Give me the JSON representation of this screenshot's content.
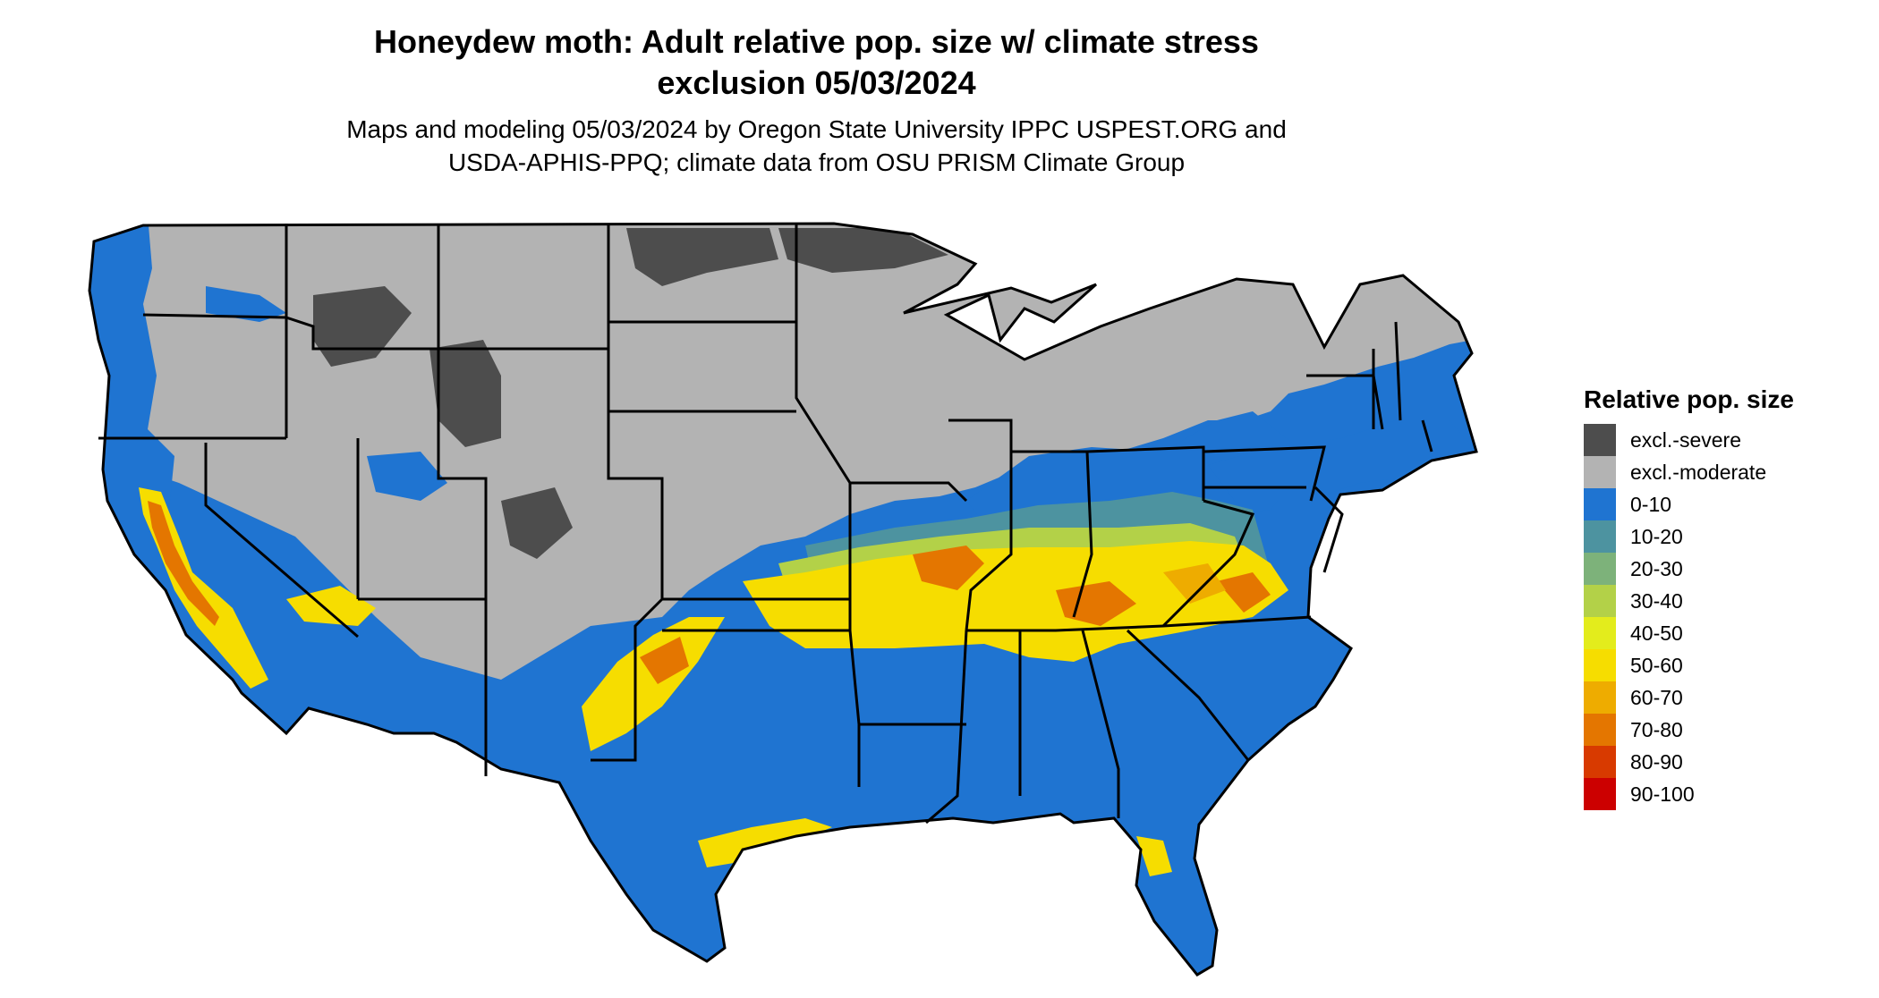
{
  "title": {
    "line1": "Honeydew moth: Adult relative pop. size w/ climate stress",
    "line2": "exclusion 05/03/2024"
  },
  "subtitle": {
    "line1": "Maps and modeling 05/03/2024 by Oregon State University IPPC USPEST.ORG and",
    "line2": "USDA-APHIS-PPQ; climate data from OSU PRISM Climate Group"
  },
  "legend": {
    "title": "Relative pop. size",
    "items": [
      {
        "label": "excl.-severe",
        "color": "#4d4d4d"
      },
      {
        "label": "excl.-moderate",
        "color": "#b3b3b3"
      },
      {
        "label": "0-10",
        "color": "#1f74d1"
      },
      {
        "label": "10-20",
        "color": "#4d93a0"
      },
      {
        "label": "20-30",
        "color": "#7db27a"
      },
      {
        "label": "30-40",
        "color": "#b3d148"
      },
      {
        "label": "40-50",
        "color": "#e3ec1c"
      },
      {
        "label": "50-60",
        "color": "#f6dd00"
      },
      {
        "label": "60-70",
        "color": "#eeac00"
      },
      {
        "label": "70-80",
        "color": "#e47600"
      },
      {
        "label": "80-90",
        "color": "#d83a00"
      },
      {
        "label": "90-100",
        "color": "#cc0000"
      }
    ]
  }
}
